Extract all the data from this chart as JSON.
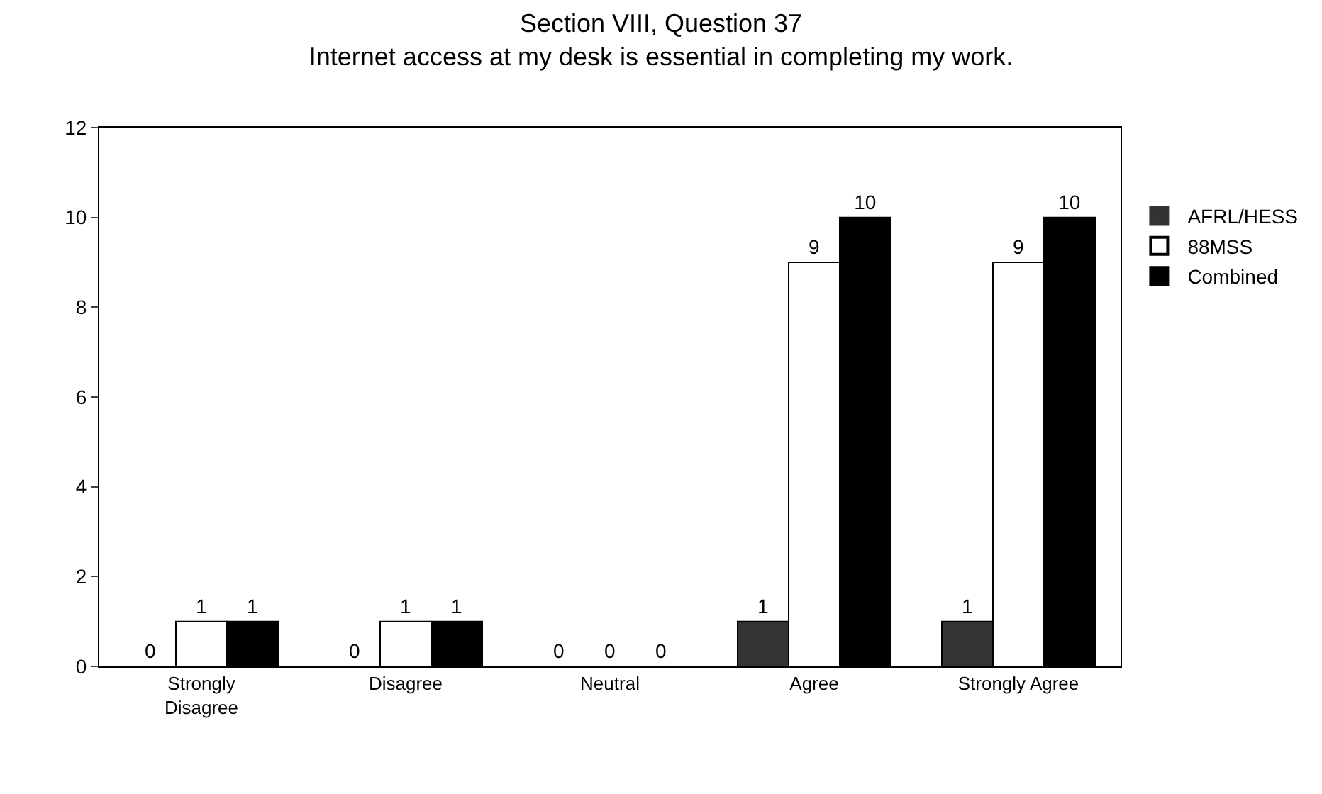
{
  "chart_data": {
    "type": "bar",
    "title": "Section VIII, Question 37",
    "subtitle": "Internet access at my desk is essential in completing my work.",
    "categories": [
      "Strongly Disagree",
      "Disagree",
      "Neutral",
      "Agree",
      "Strongly Agree"
    ],
    "series": [
      {
        "name": "AFRL/HESS",
        "color": "#333333",
        "values": [
          0,
          0,
          0,
          1,
          1
        ]
      },
      {
        "name": "88MSS",
        "color": "#ffffff",
        "values": [
          1,
          1,
          0,
          9,
          9
        ]
      },
      {
        "name": "Combined",
        "color": "#000000",
        "values": [
          1,
          1,
          0,
          10,
          10
        ]
      }
    ],
    "ylim": [
      0,
      12
    ],
    "yticks": [
      0,
      2,
      4,
      6,
      8,
      10,
      12
    ],
    "grid": false,
    "legend": "right",
    "data_labels": true
  }
}
